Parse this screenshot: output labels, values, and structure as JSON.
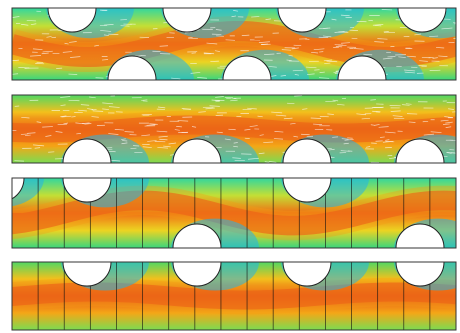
{
  "figure": {
    "panels": [
      {
        "id": "panel-1",
        "style": "vectors",
        "flow": "wavy",
        "cut_positions": [
          "top",
          "bottom",
          "top",
          "bottom",
          "top",
          "bottom",
          "top"
        ]
      },
      {
        "id": "panel-2",
        "style": "vectors",
        "flow": "straight",
        "cut_positions": [
          "bottom",
          "bottom",
          "bottom",
          "bottom"
        ]
      },
      {
        "id": "panel-3",
        "style": "contours",
        "flow": "wavy",
        "cut_positions": [
          "top",
          "bottom",
          "top",
          "bottom",
          "top"
        ]
      },
      {
        "id": "panel-4",
        "style": "contours",
        "flow": "straight",
        "cut_positions": [
          "top",
          "top",
          "top",
          "top"
        ]
      }
    ],
    "colormap": [
      "#1a3cd8",
      "#23a8f0",
      "#27d8c8",
      "#3ed66a",
      "#b7e23a",
      "#f2d21f",
      "#f58a12",
      "#e4301a"
    ]
  }
}
